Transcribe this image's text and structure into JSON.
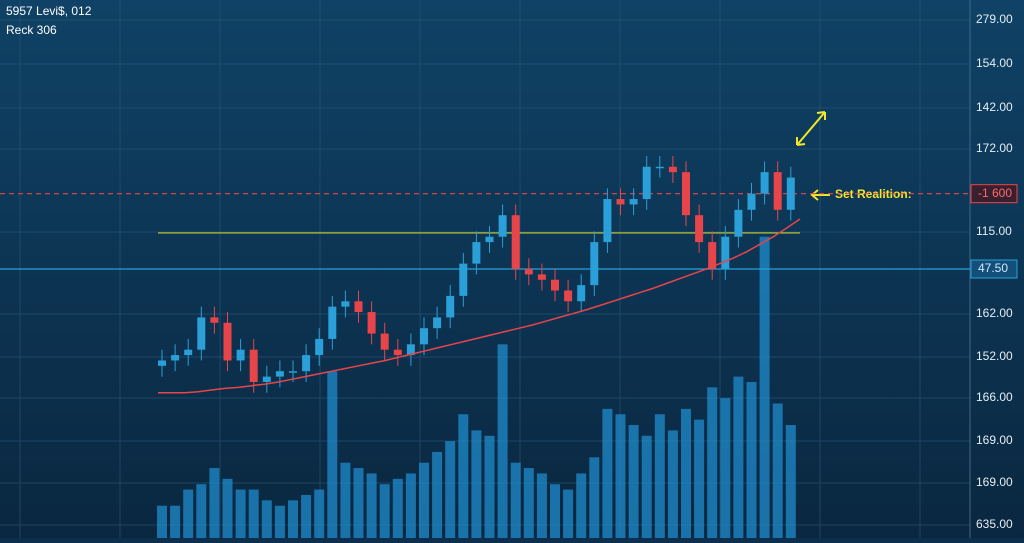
{
  "chart_data": {
    "type": "candlestick",
    "header": [
      "5957 Levi$, 012",
      "Reck 306"
    ],
    "axis_labels": [
      "279.00",
      "154.00",
      "142.00",
      "172.00",
      "115.00",
      "162.00",
      "152.00",
      "166.00",
      "169.00",
      "169.00",
      "635.00"
    ],
    "ylim": [
      0,
      100
    ],
    "up_color": "#2a9fd8",
    "down_color": "#e8454a",
    "volume_color": "#1f8ccc",
    "ma_color": "#e8454a",
    "open": [
      32,
      33,
      34,
      35,
      41,
      40,
      33,
      35,
      29,
      30,
      31,
      31,
      34,
      37,
      43,
      44,
      42,
      38,
      35,
      34,
      36,
      39,
      41,
      45,
      51,
      55,
      56,
      60,
      50,
      49,
      48,
      46,
      44,
      47,
      55,
      63,
      62,
      63,
      69,
      69,
      68,
      60,
      55,
      50,
      56,
      61,
      64,
      68,
      61
    ],
    "high": [
      35,
      36,
      37,
      43,
      43,
      42,
      37,
      37,
      32,
      33,
      33,
      36,
      39,
      45,
      46,
      46,
      44,
      40,
      37,
      38,
      41,
      43,
      47,
      53,
      57,
      58,
      62,
      62,
      52,
      51,
      50,
      48,
      49,
      57,
      65,
      65,
      65,
      71,
      71,
      71,
      70,
      62,
      57,
      58,
      63,
      66,
      70,
      70,
      69
    ],
    "low": [
      30,
      31,
      32,
      33,
      38,
      31,
      31,
      27,
      27,
      28,
      29,
      29,
      32,
      35,
      41,
      40,
      36,
      33,
      32,
      32,
      34,
      37,
      39,
      43,
      49,
      53,
      54,
      48,
      47,
      46,
      44,
      42,
      42,
      45,
      53,
      60,
      60,
      61,
      67,
      66,
      58,
      53,
      48,
      48,
      54,
      59,
      62,
      59,
      59
    ],
    "close": [
      33,
      34,
      35,
      41,
      40,
      33,
      35,
      29,
      30,
      31,
      31,
      34,
      37,
      43,
      44,
      42,
      38,
      35,
      34,
      36,
      39,
      41,
      45,
      51,
      55,
      56,
      60,
      50,
      49,
      48,
      46,
      44,
      47,
      55,
      63,
      62,
      63,
      69,
      69,
      68,
      60,
      55,
      50,
      56,
      61,
      64,
      68,
      61,
      67
    ],
    "volume": [
      6,
      6,
      9,
      10,
      13,
      11,
      9,
      9,
      7,
      6,
      7,
      8,
      9,
      31,
      14,
      13,
      12,
      10,
      11,
      12,
      14,
      16,
      18,
      23,
      20,
      19,
      36,
      14,
      13,
      12,
      10,
      9,
      12,
      15,
      24,
      23,
      21,
      19,
      23,
      20,
      24,
      22,
      28,
      26,
      30,
      29,
      56,
      25,
      21
    ],
    "ma": [
      27,
      27,
      27,
      27.2,
      27.5,
      27.8,
      28,
      28.3,
      28.6,
      29,
      29.5,
      30,
      30.5,
      31,
      31.5,
      32,
      32.5,
      33,
      33.6,
      34.2,
      34.8,
      35.4,
      36,
      36.6,
      37.2,
      37.8,
      38.4,
      39,
      39.6,
      40.3,
      41,
      41.7,
      42.4,
      43.2,
      44,
      44.8,
      45.6,
      46.4,
      47.3,
      48.2,
      49.1,
      50,
      51,
      52,
      53.2,
      54.6,
      56,
      57.6,
      59.3
    ],
    "levels": [
      {
        "value": 64,
        "color": "#e8454a",
        "label": "-1 600"
      },
      {
        "value": 56.7,
        "color": "#c8d02a"
      },
      {
        "value": 50,
        "color": "#2a9fd8",
        "label": "47.50"
      }
    ],
    "annotation": "Set Realition:"
  }
}
